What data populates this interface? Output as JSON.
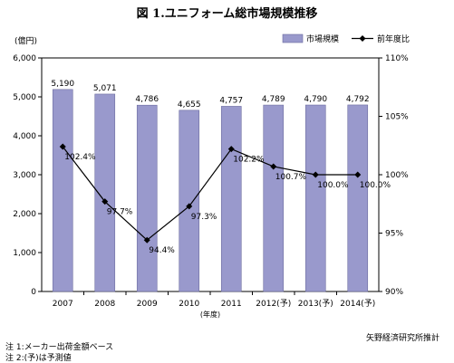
{
  "title": "図 1.ユニフォーム総市場規模推移",
  "source": "矢野経済研究所推計",
  "notes": [
    "注 1:メーカー出荷金額ベース",
    "注 2:(予)は予測値"
  ],
  "colors": {
    "bar": "#9999cc",
    "bar_stroke": "#6b6b9e",
    "line": "#000000",
    "axis": "#000000"
  },
  "chart_data": {
    "type": "bar",
    "title": "図 1.ユニフォーム総市場規模推移",
    "categories": [
      "2007",
      "2008",
      "2009",
      "2010",
      "2011",
      "2012(予)",
      "2013(予)",
      "2014(予)"
    ],
    "xlabel": "(年度)",
    "ylabel_left": "(億円)",
    "ylim_left": [
      0,
      6000
    ],
    "yticks_left": [
      "0",
      "1,000",
      "2,000",
      "3,000",
      "4,000",
      "5,000",
      "6,000"
    ],
    "ylim_right": [
      90,
      110
    ],
    "yticks_right": [
      "90%",
      "95%",
      "100%",
      "105%",
      "110%"
    ],
    "legend": {
      "position": "top-right",
      "entries": [
        "市場規模",
        "前年度比"
      ]
    },
    "series": [
      {
        "name": "市場規模",
        "type": "bar",
        "axis": "left",
        "values": [
          5190,
          5071,
          4786,
          4655,
          4757,
          4789,
          4790,
          4792
        ],
        "labels": [
          "5,190",
          "5,071",
          "4,786",
          "4,655",
          "4,757",
          "4,789",
          "4,790",
          "4,792"
        ]
      },
      {
        "name": "前年度比",
        "type": "line",
        "axis": "right",
        "values": [
          102.4,
          97.7,
          94.4,
          97.3,
          102.2,
          100.7,
          100.0,
          100.0
        ],
        "labels": [
          "102.4%",
          "97.7%",
          "94.4%",
          "97.3%",
          "102.2%",
          "100.7%",
          "100.0%",
          "100.0%"
        ]
      }
    ]
  }
}
